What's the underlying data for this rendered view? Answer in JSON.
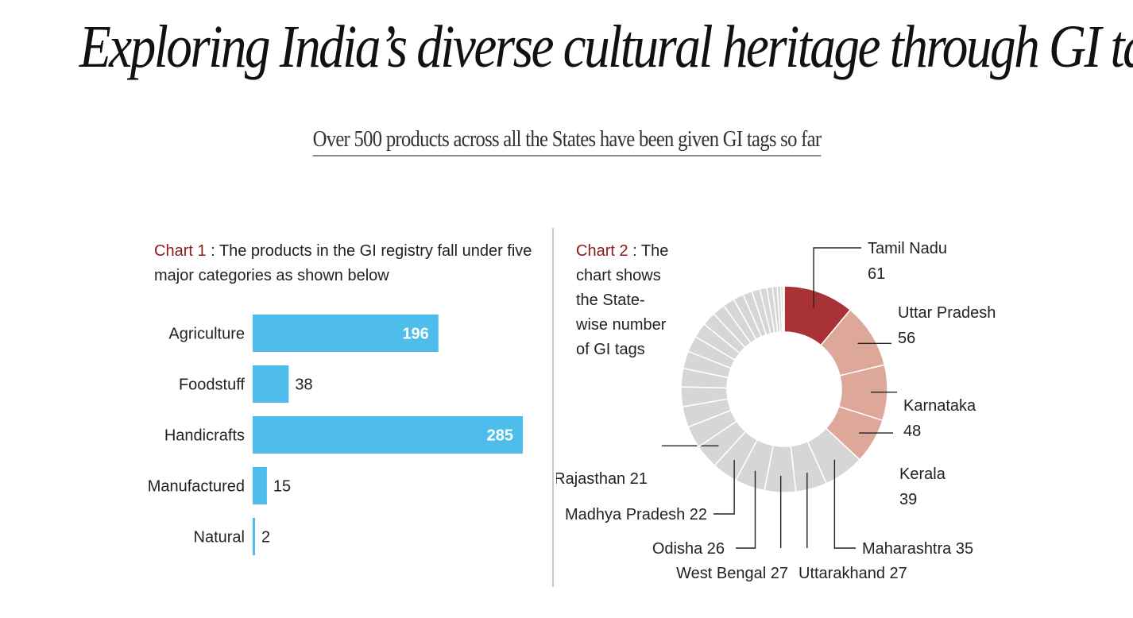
{
  "title": "Exploring India’s diverse cultural heritage through GI tags",
  "subtitle": "Over 500 products across all the States have been given GI tags so far",
  "chart1_caption": {
    "lead": "Chart 1",
    "text": " : The products in the GI registry fall under five major categories as shown below"
  },
  "chart2_caption": {
    "lead": "Chart 2",
    "text": " : The chart shows  the  State-wise number of GI tags"
  },
  "colors": {
    "bar": "#4fbdec",
    "top_state": "#a83236",
    "highlight_states": "#dda89a",
    "other_states": "#d6d6d6",
    "title": "#111111",
    "caption_lead": "#8b1a1a"
  },
  "chart_data": [
    {
      "type": "bar",
      "orientation": "horizontal",
      "categories": [
        "Agriculture",
        "Foodstuff",
        "Handicrafts",
        "Manufactured",
        "Natural"
      ],
      "values": [
        196,
        38,
        285,
        15,
        2
      ],
      "title": "",
      "xlabel": "",
      "ylabel": "",
      "xlim": [
        0,
        285
      ],
      "grid": false,
      "labels_inside_min": 100
    },
    {
      "type": "pie",
      "donut": true,
      "labeled": [
        {
          "name": "Tamil Nadu",
          "value": 61
        },
        {
          "name": "Uttar Pradesh",
          "value": 56
        },
        {
          "name": "Karnataka",
          "value": 48
        },
        {
          "name": "Kerala",
          "value": 39
        },
        {
          "name": "Maharashtra",
          "value": 35
        },
        {
          "name": "Uttarakhand",
          "value": 27
        },
        {
          "name": "West Bengal",
          "value": 27
        },
        {
          "name": "Odisha",
          "value": 26
        },
        {
          "name": "Madhya Pradesh",
          "value": 22
        },
        {
          "name": "Rajasthan",
          "value": 21
        }
      ],
      "other_slices": [
        19,
        18,
        17,
        16,
        15,
        14,
        13,
        12,
        11,
        10,
        9,
        8,
        7,
        6,
        5,
        4,
        3,
        2,
        1
      ],
      "legend": "none"
    }
  ]
}
